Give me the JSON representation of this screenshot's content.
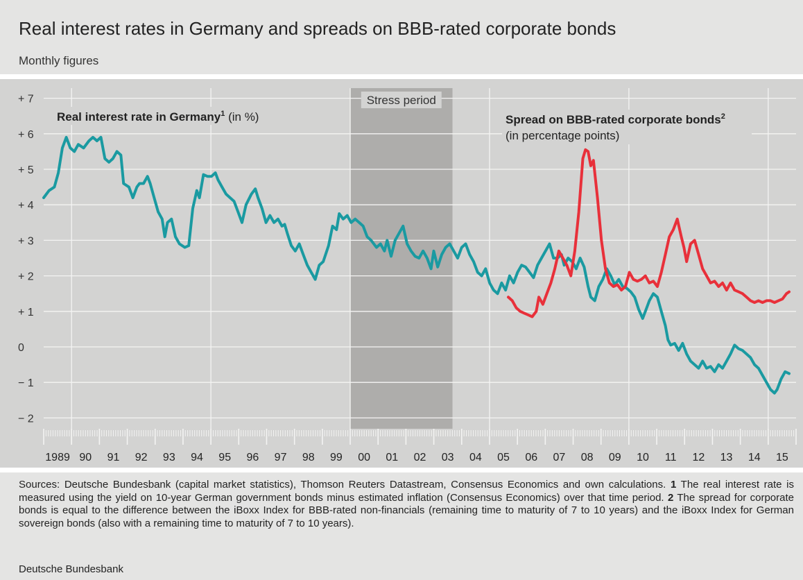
{
  "header": {
    "title": "Real interest rates in Germany and spreads on BBB-rated corporate bonds",
    "subtitle": "Monthly figures"
  },
  "chart_data": {
    "type": "line",
    "stress_period_label": "Stress period",
    "stress_period": [
      2000.0,
      2003.67
    ],
    "ylim": [
      -2.5,
      7.3
    ],
    "xlim": [
      1989.0,
      2016.0
    ],
    "yticks": [
      7,
      6,
      5,
      4,
      3,
      2,
      1,
      0,
      -1,
      -2
    ],
    "ytick_labels": [
      "+ 7",
      "+ 6",
      "+ 5",
      "+ 4",
      "+ 3",
      "+ 2",
      "+ 1",
      "0",
      "− 1",
      "− 2"
    ],
    "xtick_labels": [
      "1989",
      "90",
      "91",
      "92",
      "93",
      "94",
      "95",
      "96",
      "97",
      "98",
      "99",
      "00",
      "01",
      "02",
      "03",
      "04",
      "05",
      "06",
      "07",
      "08",
      "09",
      "10",
      "11",
      "12",
      "13",
      "14",
      "15"
    ],
    "grid": true,
    "series": [
      {
        "name": "Real interest rate in Germany",
        "note": "(in %)",
        "color": "#1a9aa1",
        "label_position": "top-left",
        "points": [
          [
            1989.0,
            4.2
          ],
          [
            1989.2,
            4.4
          ],
          [
            1989.4,
            4.5
          ],
          [
            1989.55,
            4.9
          ],
          [
            1989.7,
            5.6
          ],
          [
            1989.85,
            5.9
          ],
          [
            1990.0,
            5.6
          ],
          [
            1990.15,
            5.5
          ],
          [
            1990.3,
            5.7
          ],
          [
            1990.5,
            5.6
          ],
          [
            1990.7,
            5.8
          ],
          [
            1990.85,
            5.9
          ],
          [
            1991.0,
            5.8
          ],
          [
            1991.15,
            5.9
          ],
          [
            1991.3,
            5.3
          ],
          [
            1991.45,
            5.2
          ],
          [
            1991.6,
            5.3
          ],
          [
            1991.75,
            5.5
          ],
          [
            1991.9,
            5.4
          ],
          [
            1992.0,
            4.6
          ],
          [
            1992.2,
            4.5
          ],
          [
            1992.35,
            4.2
          ],
          [
            1992.5,
            4.5
          ],
          [
            1992.6,
            4.6
          ],
          [
            1992.75,
            4.6
          ],
          [
            1992.9,
            4.8
          ],
          [
            1993.0,
            4.6
          ],
          [
            1993.15,
            4.2
          ],
          [
            1993.3,
            3.8
          ],
          [
            1993.45,
            3.6
          ],
          [
            1993.55,
            3.1
          ],
          [
            1993.65,
            3.5
          ],
          [
            1993.8,
            3.6
          ],
          [
            1993.95,
            3.1
          ],
          [
            1994.1,
            2.9
          ],
          [
            1994.3,
            2.8
          ],
          [
            1994.45,
            2.85
          ],
          [
            1994.6,
            3.9
          ],
          [
            1994.75,
            4.4
          ],
          [
            1994.85,
            4.2
          ],
          [
            1995.0,
            4.85
          ],
          [
            1995.15,
            4.8
          ],
          [
            1995.3,
            4.8
          ],
          [
            1995.45,
            4.9
          ],
          [
            1995.55,
            4.7
          ],
          [
            1995.7,
            4.5
          ],
          [
            1995.85,
            4.3
          ],
          [
            1996.0,
            4.2
          ],
          [
            1996.15,
            4.1
          ],
          [
            1996.3,
            3.8
          ],
          [
            1996.45,
            3.5
          ],
          [
            1996.6,
            4.0
          ],
          [
            1996.8,
            4.3
          ],
          [
            1996.95,
            4.45
          ],
          [
            1997.05,
            4.2
          ],
          [
            1997.2,
            3.9
          ],
          [
            1997.35,
            3.5
          ],
          [
            1997.5,
            3.7
          ],
          [
            1997.65,
            3.5
          ],
          [
            1997.8,
            3.6
          ],
          [
            1997.95,
            3.4
          ],
          [
            1998.05,
            3.45
          ],
          [
            1998.15,
            3.2
          ],
          [
            1998.3,
            2.85
          ],
          [
            1998.45,
            2.7
          ],
          [
            1998.6,
            2.9
          ],
          [
            1998.75,
            2.6
          ],
          [
            1998.9,
            2.3
          ],
          [
            1999.05,
            2.1
          ],
          [
            1999.2,
            1.9
          ],
          [
            1999.35,
            2.3
          ],
          [
            1999.5,
            2.4
          ],
          [
            1999.7,
            2.85
          ],
          [
            1999.85,
            3.4
          ],
          [
            2000.0,
            3.3
          ],
          [
            2000.1,
            3.75
          ],
          [
            2000.25,
            3.6
          ],
          [
            2000.4,
            3.7
          ],
          [
            2000.55,
            3.5
          ],
          [
            2000.7,
            3.6
          ],
          [
            2000.85,
            3.5
          ],
          [
            2001.0,
            3.4
          ],
          [
            2001.15,
            3.1
          ],
          [
            2001.3,
            3.0
          ],
          [
            2001.5,
            2.8
          ],
          [
            2001.65,
            2.9
          ],
          [
            2001.8,
            2.7
          ],
          [
            2001.9,
            3.0
          ],
          [
            2002.05,
            2.55
          ],
          [
            2002.2,
            3.0
          ],
          [
            2002.35,
            3.2
          ],
          [
            2002.5,
            3.4
          ],
          [
            2002.65,
            2.9
          ],
          [
            2002.8,
            2.7
          ],
          [
            2002.95,
            2.55
          ],
          [
            2003.1,
            2.5
          ],
          [
            2003.25,
            2.7
          ],
          [
            2003.4,
            2.5
          ],
          [
            2003.55,
            2.2
          ],
          [
            2003.65,
            2.7
          ],
          [
            2003.8,
            2.25
          ],
          [
            2003.95,
            2.6
          ],
          [
            2004.1,
            2.8
          ],
          [
            2004.25,
            2.9
          ],
          [
            2004.4,
            2.7
          ],
          [
            2004.55,
            2.5
          ],
          [
            2004.7,
            2.8
          ],
          [
            2004.85,
            2.9
          ],
          [
            2005.0,
            2.6
          ],
          [
            2005.15,
            2.4
          ],
          [
            2005.3,
            2.1
          ],
          [
            2005.45,
            2.0
          ],
          [
            2005.6,
            2.2
          ],
          [
            2005.75,
            1.8
          ],
          [
            2005.9,
            1.6
          ],
          [
            2006.05,
            1.5
          ],
          [
            2006.2,
            1.8
          ],
          [
            2006.35,
            1.6
          ],
          [
            2006.5,
            2.0
          ],
          [
            2006.65,
            1.8
          ],
          [
            2006.8,
            2.1
          ],
          [
            2006.95,
            2.3
          ],
          [
            2007.1,
            2.25
          ],
          [
            2007.25,
            2.1
          ],
          [
            2007.4,
            1.95
          ],
          [
            2007.55,
            2.3
          ],
          [
            2007.7,
            2.5
          ],
          [
            2007.85,
            2.7
          ],
          [
            2008.0,
            2.9
          ],
          [
            2008.15,
            2.5
          ],
          [
            2008.3,
            2.5
          ],
          [
            2008.45,
            2.6
          ],
          [
            2008.55,
            2.3
          ],
          [
            2008.7,
            2.5
          ],
          [
            2008.85,
            2.4
          ],
          [
            2009.0,
            2.2
          ],
          [
            2009.15,
            2.5
          ],
          [
            2009.3,
            2.25
          ],
          [
            2009.45,
            1.7
          ],
          [
            2009.55,
            1.4
          ],
          [
            2009.7,
            1.3
          ],
          [
            2009.85,
            1.7
          ],
          [
            2010.0,
            1.9
          ],
          [
            2010.15,
            2.2
          ],
          [
            2010.3,
            2.0
          ],
          [
            2010.45,
            1.75
          ],
          [
            2010.6,
            1.9
          ],
          [
            2010.75,
            1.7
          ],
          [
            2010.9,
            1.65
          ],
          [
            2011.05,
            1.55
          ],
          [
            2011.2,
            1.4
          ],
          [
            2011.35,
            1.05
          ],
          [
            2011.5,
            0.8
          ],
          [
            2011.65,
            1.1
          ],
          [
            2011.75,
            1.3
          ],
          [
            2011.9,
            1.5
          ],
          [
            2012.05,
            1.4
          ],
          [
            2012.2,
            1.0
          ],
          [
            2012.35,
            0.6
          ],
          [
            2012.45,
            0.2
          ],
          [
            2012.55,
            0.05
          ],
          [
            2012.7,
            0.1
          ],
          [
            2012.85,
            -0.1
          ],
          [
            2013.0,
            0.1
          ],
          [
            2013.15,
            -0.2
          ],
          [
            2013.3,
            -0.4
          ],
          [
            2013.45,
            -0.5
          ],
          [
            2013.6,
            -0.6
          ],
          [
            2013.75,
            -0.4
          ],
          [
            2013.9,
            -0.6
          ],
          [
            2014.05,
            -0.55
          ],
          [
            2014.2,
            -0.7
          ],
          [
            2014.35,
            -0.5
          ],
          [
            2014.5,
            -0.6
          ],
          [
            2014.65,
            -0.4
          ],
          [
            2014.8,
            -0.2
          ],
          [
            2014.95,
            0.05
          ],
          [
            2015.1,
            -0.05
          ],
          [
            2015.25,
            -0.1
          ],
          [
            2015.4,
            -0.2
          ],
          [
            2015.55,
            -0.3
          ],
          [
            2015.7,
            -0.5
          ],
          [
            2015.85,
            -0.6
          ],
          [
            2016.0,
            -0.8
          ],
          [
            2016.15,
            -1.0
          ],
          [
            2016.3,
            -1.2
          ],
          [
            2016.45,
            -1.3
          ],
          [
            2016.55,
            -1.2
          ],
          [
            2016.7,
            -0.9
          ],
          [
            2016.85,
            -0.7
          ],
          [
            2017.0,
            -0.75
          ]
        ]
      },
      {
        "name": "Spread on BBB-rated corporate bonds",
        "note": "(in percentage points)",
        "color": "#e8303a",
        "label_position": "top-right",
        "points": [
          [
            2006.45,
            1.4
          ],
          [
            2006.6,
            1.3
          ],
          [
            2006.75,
            1.1
          ],
          [
            2006.9,
            1.0
          ],
          [
            2007.05,
            0.95
          ],
          [
            2007.2,
            0.9
          ],
          [
            2007.35,
            0.85
          ],
          [
            2007.5,
            1.0
          ],
          [
            2007.6,
            1.4
          ],
          [
            2007.75,
            1.2
          ],
          [
            2007.9,
            1.5
          ],
          [
            2008.05,
            1.8
          ],
          [
            2008.2,
            2.2
          ],
          [
            2008.35,
            2.7
          ],
          [
            2008.5,
            2.5
          ],
          [
            2008.65,
            2.3
          ],
          [
            2008.8,
            2.0
          ],
          [
            2008.95,
            2.7
          ],
          [
            2009.1,
            3.8
          ],
          [
            2009.25,
            5.3
          ],
          [
            2009.35,
            5.55
          ],
          [
            2009.45,
            5.5
          ],
          [
            2009.55,
            5.1
          ],
          [
            2009.65,
            5.25
          ],
          [
            2009.8,
            4.2
          ],
          [
            2009.95,
            3.0
          ],
          [
            2010.1,
            2.2
          ],
          [
            2010.25,
            1.8
          ],
          [
            2010.4,
            1.7
          ],
          [
            2010.55,
            1.75
          ],
          [
            2010.7,
            1.6
          ],
          [
            2010.85,
            1.7
          ],
          [
            2011.0,
            2.1
          ],
          [
            2011.15,
            1.9
          ],
          [
            2011.3,
            1.85
          ],
          [
            2011.45,
            1.9
          ],
          [
            2011.6,
            2.0
          ],
          [
            2011.75,
            1.8
          ],
          [
            2011.9,
            1.85
          ],
          [
            2012.05,
            1.7
          ],
          [
            2012.2,
            2.1
          ],
          [
            2012.35,
            2.6
          ],
          [
            2012.5,
            3.1
          ],
          [
            2012.65,
            3.3
          ],
          [
            2012.8,
            3.6
          ],
          [
            2012.95,
            3.1
          ],
          [
            2013.05,
            2.8
          ],
          [
            2013.15,
            2.4
          ],
          [
            2013.3,
            2.9
          ],
          [
            2013.45,
            3.0
          ],
          [
            2013.6,
            2.6
          ],
          [
            2013.75,
            2.2
          ],
          [
            2013.9,
            2.0
          ],
          [
            2014.05,
            1.8
          ],
          [
            2014.2,
            1.85
          ],
          [
            2014.35,
            1.7
          ],
          [
            2014.5,
            1.8
          ],
          [
            2014.65,
            1.6
          ],
          [
            2014.8,
            1.8
          ],
          [
            2014.95,
            1.6
          ],
          [
            2015.1,
            1.55
          ],
          [
            2015.25,
            1.5
          ],
          [
            2015.4,
            1.4
          ],
          [
            2015.55,
            1.3
          ],
          [
            2015.7,
            1.25
          ],
          [
            2015.85,
            1.3
          ],
          [
            2016.0,
            1.25
          ],
          [
            2016.15,
            1.3
          ],
          [
            2016.3,
            1.3
          ],
          [
            2016.45,
            1.25
          ],
          [
            2016.6,
            1.3
          ],
          [
            2016.75,
            1.35
          ],
          [
            2016.9,
            1.5
          ],
          [
            2017.0,
            1.55
          ]
        ]
      }
    ]
  },
  "labels": {
    "real_rate": {
      "main": "Real interest rate in Germany",
      "sup": "1",
      "note": "(in %)"
    },
    "spread": {
      "main": "Spread on BBB-rated corporate bonds",
      "sup": "2",
      "note": "(in percentage points)"
    }
  },
  "footnotes": {
    "sources": "Sources: Deutsche Bundesbank (capital market statistics), Thomson Reuters Datastream, Consensus Economics and own calculations.",
    "n1_mark": "1",
    "n1_text": " The real interest rate is measured using the yield on 10-year German government bonds minus estimated inflation (Consensus Economics) over that time period.",
    "n2_mark": "2",
    "n2_text": " The spread for corporate bonds is equal to the difference between the iBoxx Index for BBB-rated non-financials (remaining time to maturity of 7 to 10 years) and the iBoxx Index for German sovereign bonds (also with a remaining time to maturity of 7 to 10 years).",
    "publisher": "Deutsche Bundesbank"
  }
}
